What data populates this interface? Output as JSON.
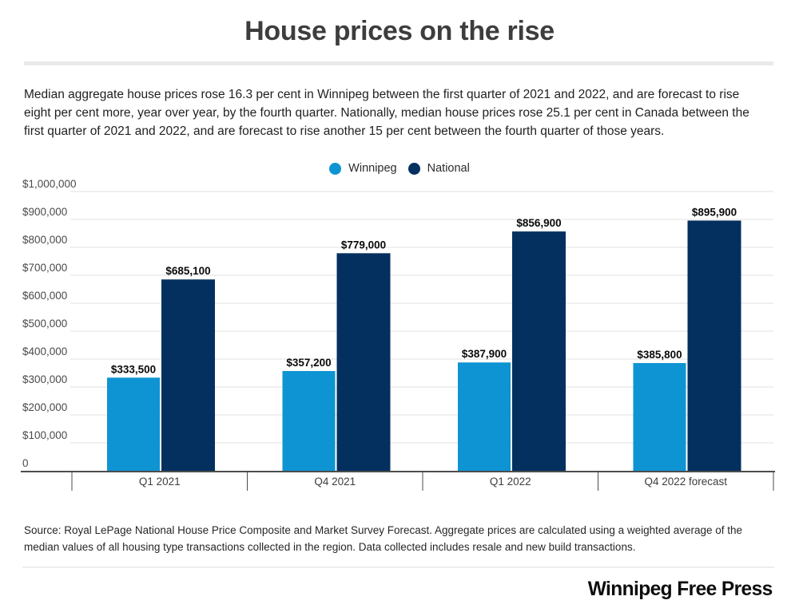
{
  "header": {
    "title": "House prices on the rise"
  },
  "intro": {
    "text": "Median aggregate house prices rose 16.3 per cent in Winnipeg between the first quarter of 2021 and 2022, and are forecast to rise eight per cent more, year over year, by the fourth quarter. Nationally, median house prices rose 25.1 per cent in Canada between the first quarter of 2021 and 2022, and are forecast to rise another 15 per cent between the fourth quarter of those years."
  },
  "chart_data": {
    "type": "bar",
    "title": "House prices on the rise",
    "categories": [
      "Q1 2021",
      "Q4 2021",
      "Q1 2022",
      "Q4 2022 forecast"
    ],
    "series": [
      {
        "name": "Winnipeg",
        "color": "#0e94d2",
        "values": [
          333500,
          357200,
          387900,
          385800
        ],
        "labels": [
          "$333,500",
          "$357,200",
          "$387,900",
          "$385,800"
        ]
      },
      {
        "name": "National",
        "color": "#04305f",
        "values": [
          685100,
          779000,
          856900,
          895900
        ],
        "labels": [
          "$685,100",
          "$779,000",
          "$856,900",
          "$895,900"
        ]
      }
    ],
    "ylim": [
      0,
      1000000
    ],
    "ytick_interval": 100000,
    "ytick_labels": [
      "0",
      "$100,000",
      "$200,000",
      "$300,000",
      "$400,000",
      "$500,000",
      "$600,000",
      "$700,000",
      "$800,000",
      "$900,000",
      "$1,000,000"
    ],
    "grid": true,
    "legend_position": "top-center",
    "colors": {
      "gridline": "#e2e2e2",
      "axis_line": "#4d4d4d",
      "axis_label": "#4a4a4a",
      "category_label": "#3d3d3d",
      "data_label": "#0a0a0a"
    }
  },
  "source": {
    "text": "Source: Royal LePage National House Price Composite and Market Survey Forecast. Aggregate prices are calculated using a weighted average of the median values of all housing type transactions collected in the region. Data collected includes resale and new build transactions."
  },
  "footer": {
    "brand": "Winnipeg Free Press"
  }
}
